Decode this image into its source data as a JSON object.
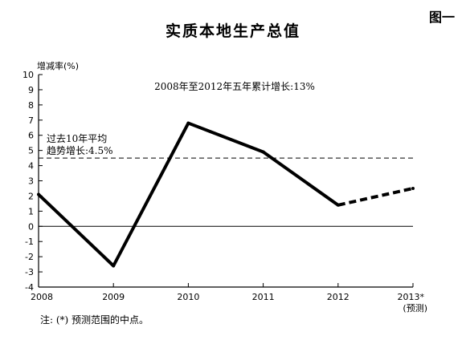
{
  "figure_label": "图一",
  "title": "实质本地生产总值",
  "note": "注: (*) 预测范围的中点。",
  "chart_data": {
    "type": "line",
    "ylabel": "增减率(%)",
    "x": [
      "2008",
      "2009",
      "2010",
      "2011",
      "2012",
      "2013*"
    ],
    "x_sublabel": "(预测)",
    "series": [
      {
        "values": [
          2.1,
          -2.6,
          6.8,
          4.9,
          1.4,
          2.5
        ],
        "forecast_from_index": 4
      }
    ],
    "yticks": [
      -4,
      -3,
      -2,
      -1,
      0,
      1,
      2,
      3,
      4,
      5,
      6,
      7,
      8,
      9,
      10
    ],
    "ylim": [
      -4,
      10
    ],
    "reference_line": {
      "value": 4.5,
      "label_line1": "过去10年平均",
      "label_line2": "趋势增长:4.5%"
    },
    "annotation": "2008年至2012年五年累计增长:13%",
    "line_color": "#000000"
  }
}
